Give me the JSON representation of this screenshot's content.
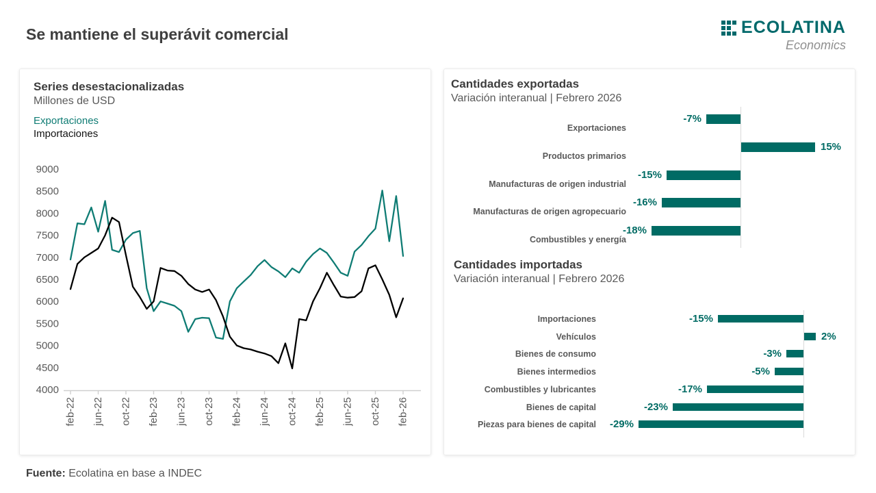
{
  "page": {
    "title": "Se mantiene el superávit comercial",
    "footer_label": "Fuente:",
    "footer_text": " Ecolatina en base a INDEC"
  },
  "logo": {
    "wordmark": "ECOLATINA",
    "tagline": "Economics"
  },
  "colors": {
    "teal_line": "#0f7c74",
    "teal_bar": "#006b64",
    "black_line": "#000000",
    "logo_teal": "#00696b",
    "axis_text": "#595959",
    "axis_line": "#cfcfcf"
  },
  "chart_data": [
    {
      "type": "line",
      "panel": "series-desestacionalizadas",
      "title": "Series desestacionalizadas",
      "subtitle": "Millones de USD",
      "legend": [
        "Exportaciones",
        "Importaciones"
      ],
      "x_frequency": "monthly, feb-2022 to feb-2026",
      "x_tick_labels": [
        "feb-22",
        "jun-22",
        "oct-22",
        "feb-23",
        "jun-23",
        "oct-23",
        "feb-24",
        "jun-24",
        "oct-24",
        "feb-25",
        "jun-25",
        "oct-25",
        "feb-26"
      ],
      "ylim": [
        4000,
        9000
      ],
      "y_ticks": [
        4000,
        4500,
        5000,
        5500,
        6000,
        6500,
        7000,
        7500,
        8000,
        8500,
        9000
      ],
      "grid": false,
      "series": [
        {
          "name": "Exportaciones",
          "color": "#0f7c74",
          "values": [
            6950,
            7770,
            7750,
            8130,
            7580,
            8280,
            7170,
            7120,
            7400,
            7550,
            7600,
            6300,
            5780,
            6000,
            5950,
            5900,
            5780,
            5310,
            5600,
            5630,
            5620,
            5180,
            5150,
            6000,
            6300,
            6450,
            6600,
            6800,
            6940,
            6780,
            6680,
            6550,
            6750,
            6650,
            6900,
            7075,
            7200,
            7100,
            6880,
            6650,
            6580,
            7130,
            7280,
            7480,
            7650,
            8515,
            7365,
            8390,
            7030
          ]
        },
        {
          "name": "Importaciones",
          "color": "#000000",
          "values": [
            6280,
            6850,
            7000,
            7100,
            7200,
            7500,
            7900,
            7800,
            7050,
            6335,
            6100,
            5830,
            6000,
            6760,
            6700,
            6690,
            6580,
            6395,
            6270,
            6215,
            6270,
            6030,
            5660,
            5200,
            5000,
            4940,
            4910,
            4860,
            4820,
            4760,
            4600,
            5050,
            4480,
            5600,
            5570,
            6000,
            6300,
            6650,
            6370,
            6110,
            6085,
            6100,
            6230,
            6750,
            6820,
            6500,
            6150,
            5640,
            6070
          ]
        }
      ]
    },
    {
      "type": "bar",
      "panel": "cantidades-exportadas",
      "title": "Cantidades exportadas",
      "subtitle": "Variación interanual | Febrero 2026",
      "orientation": "horizontal",
      "categories": [
        "Exportaciones",
        "Productos primarios",
        "Manufacturas de origen industrial",
        "Manufacturas de origen agropecuario",
        "Combustibles y energía"
      ],
      "values": [
        -7,
        15,
        -15,
        -16,
        -18
      ],
      "labels": [
        "-7%",
        "15%",
        "-15%",
        "-16%",
        "-18%"
      ]
    },
    {
      "type": "bar",
      "panel": "cantidades-importadas",
      "title": "Cantidades importadas",
      "subtitle": "Variación interanual | Febrero 2026",
      "orientation": "horizontal",
      "categories": [
        "Importaciones",
        "Vehículos",
        "Bienes de consumo",
        "Bienes intermedios",
        "Combustibles y lubricantes",
        "Bienes de capital",
        "Piezas para bienes de capital"
      ],
      "values": [
        -15,
        2,
        -3,
        -5,
        -17,
        -23,
        -29
      ],
      "labels": [
        "-15%",
        "2%",
        "-3%",
        "-5%",
        "-17%",
        "-23%",
        "-29%"
      ]
    }
  ]
}
